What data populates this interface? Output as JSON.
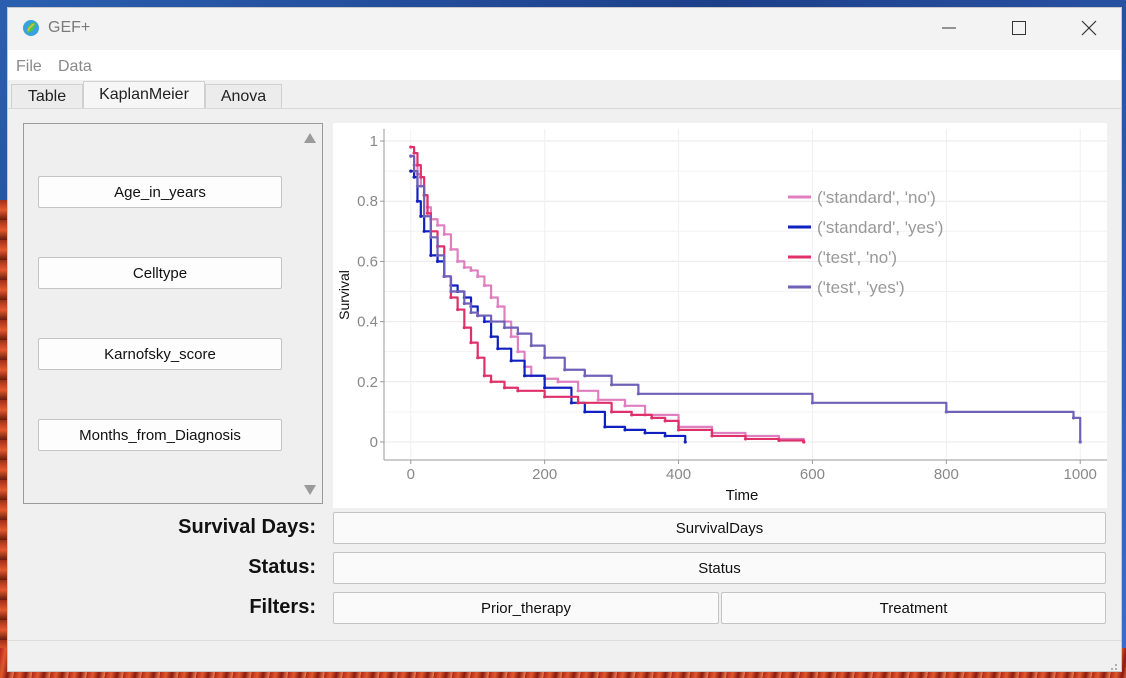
{
  "window": {
    "title": "GEF+",
    "icon": "app-logo-icon",
    "controls": [
      "minimize-icon",
      "maximize-icon",
      "close-icon"
    ]
  },
  "menu": {
    "file": "File",
    "data": "Data"
  },
  "tabs": [
    {
      "label": "Table",
      "active": false
    },
    {
      "label": "KaplanMeier",
      "active": true
    },
    {
      "label": "Anova",
      "active": false
    }
  ],
  "variables": [
    "Age_in_years",
    "Celltype",
    "Karnofsky_score",
    "Months_from_Diagnosis"
  ],
  "form": {
    "survival_label": "Survival Days:",
    "survival_value": "SurvivalDays",
    "status_label": "Status:",
    "status_value": "Status",
    "filters_label": "Filters:",
    "filter1": "Prior_therapy",
    "filter2": "Treatment"
  },
  "chart_data": {
    "type": "line",
    "title": "",
    "xlabel": "Time",
    "ylabel": "Survival",
    "xlim": [
      -40,
      1040
    ],
    "ylim": [
      -0.06,
      1.04
    ],
    "xticks": [
      0,
      200,
      400,
      600,
      800,
      1000
    ],
    "yticks": [
      0,
      0.2,
      0.4,
      0.6,
      0.8,
      1
    ],
    "ytick_labels": [
      "0",
      "0.2",
      "0.4",
      "0.6",
      "0.8",
      "1"
    ],
    "grid": true,
    "legend_position": "top-right",
    "series": [
      {
        "name": "('standard', 'no')",
        "color": "#e07fbf",
        "x": [
          0,
          5,
          10,
          15,
          20,
          25,
          30,
          40,
          50,
          60,
          70,
          80,
          90,
          100,
          110,
          120,
          130,
          140,
          150,
          160,
          170,
          180,
          200,
          220,
          250,
          280,
          320,
          350,
          400,
          450,
          500,
          550,
          587
        ],
        "y": [
          0.95,
          0.92,
          0.89,
          0.85,
          0.82,
          0.78,
          0.74,
          0.72,
          0.69,
          0.64,
          0.6,
          0.58,
          0.57,
          0.55,
          0.52,
          0.48,
          0.45,
          0.4,
          0.35,
          0.3,
          0.25,
          0.22,
          0.21,
          0.2,
          0.17,
          0.14,
          0.12,
          0.09,
          0.05,
          0.03,
          0.02,
          0.01,
          0.0
        ]
      },
      {
        "name": "('standard', 'yes')",
        "color": "#1020c0",
        "x": [
          0,
          5,
          10,
          15,
          20,
          30,
          40,
          50,
          60,
          70,
          80,
          90,
          100,
          110,
          120,
          130,
          150,
          170,
          200,
          240,
          260,
          290,
          320,
          350,
          380,
          410
        ],
        "y": [
          0.9,
          0.88,
          0.8,
          0.75,
          0.7,
          0.62,
          0.6,
          0.55,
          0.52,
          0.5,
          0.48,
          0.45,
          0.42,
          0.4,
          0.35,
          0.31,
          0.27,
          0.22,
          0.18,
          0.13,
          0.1,
          0.05,
          0.04,
          0.03,
          0.02,
          0.0
        ]
      },
      {
        "name": "('test', 'no')",
        "color": "#e0306a",
        "x": [
          0,
          5,
          10,
          15,
          20,
          25,
          30,
          40,
          50,
          60,
          70,
          80,
          90,
          100,
          110,
          120,
          140,
          160,
          200,
          250,
          300,
          330,
          360,
          380,
          400,
          450,
          500,
          550,
          587
        ],
        "y": [
          0.98,
          0.96,
          0.92,
          0.88,
          0.82,
          0.76,
          0.7,
          0.65,
          0.55,
          0.48,
          0.44,
          0.38,
          0.33,
          0.28,
          0.22,
          0.2,
          0.18,
          0.17,
          0.15,
          0.13,
          0.1,
          0.09,
          0.08,
          0.07,
          0.04,
          0.02,
          0.01,
          0.005,
          0.0
        ]
      },
      {
        "name": "('test', 'yes')",
        "color": "#7060b8",
        "x": [
          0,
          5,
          10,
          20,
          30,
          40,
          50,
          60,
          80,
          90,
          100,
          120,
          140,
          160,
          180,
          200,
          230,
          260,
          300,
          340,
          600,
          800,
          990,
          1000
        ],
        "y": [
          0.95,
          0.9,
          0.85,
          0.75,
          0.68,
          0.62,
          0.55,
          0.5,
          0.46,
          0.43,
          0.42,
          0.4,
          0.38,
          0.36,
          0.32,
          0.28,
          0.24,
          0.22,
          0.19,
          0.16,
          0.13,
          0.1,
          0.08,
          0.0
        ]
      }
    ]
  }
}
